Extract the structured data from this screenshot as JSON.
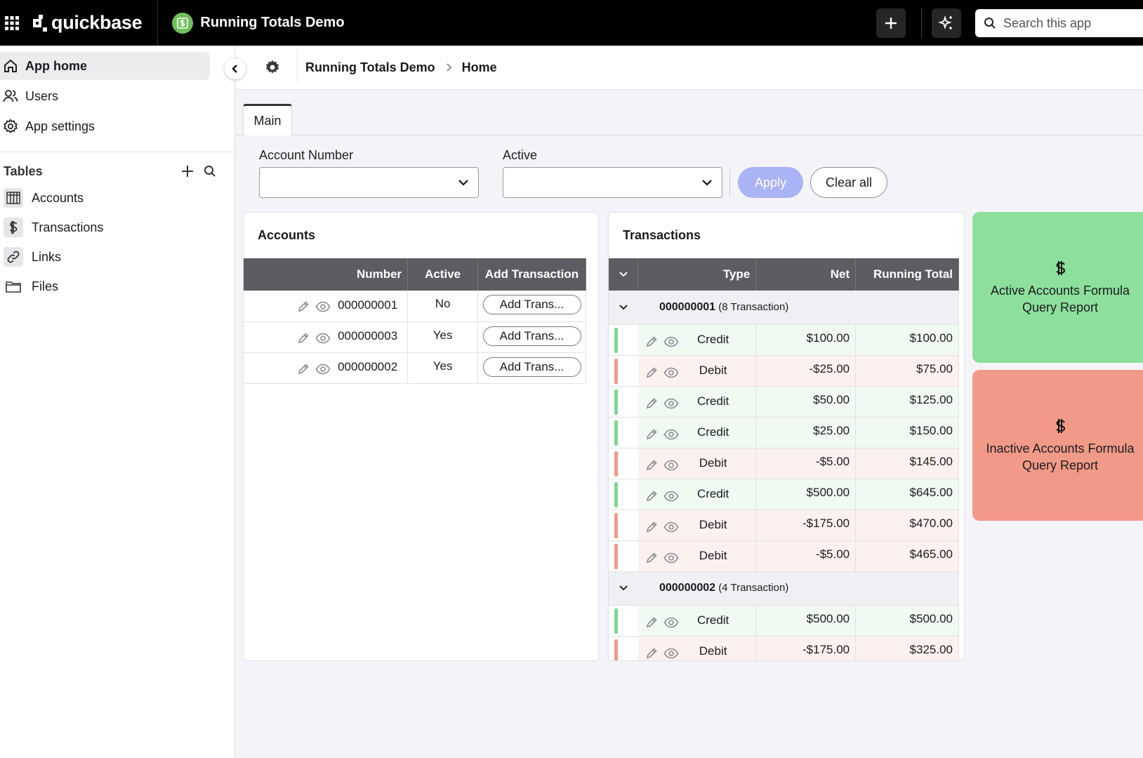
{
  "topbar": {
    "logo_text": "quickbase",
    "app_name": "Running Totals Demo",
    "search_placeholder": "Search this app",
    "icons": [
      "apps-grid-icon",
      "plus-icon",
      "sparkle-icon",
      "search-icon"
    ]
  },
  "sidebar": {
    "nav": [
      {
        "label": "App home",
        "icon": "home-icon"
      },
      {
        "label": "Users",
        "icon": "users-icon"
      },
      {
        "label": "App settings",
        "icon": "gear-icon"
      }
    ],
    "tables_heading": "Tables",
    "tables": [
      {
        "label": "Accounts",
        "icon": "table-icon"
      },
      {
        "label": "Transactions",
        "icon": "dollar-icon"
      },
      {
        "label": "Links",
        "icon": "link-icon"
      },
      {
        "label": "Files",
        "icon": "folder-icon"
      }
    ]
  },
  "header": {
    "breadcrumb_app": "Running Totals Demo",
    "breadcrumb_page": "Home"
  },
  "tabs": {
    "main": "Main"
  },
  "filters": {
    "account_number_label": "Account Number",
    "account_number_value": "",
    "active_label": "Active",
    "active_value": "",
    "apply": "Apply",
    "clear_all": "Clear all"
  },
  "accounts": {
    "title": "Accounts",
    "columns": [
      "Number",
      "Active",
      "Add Transaction"
    ],
    "button_label": "Add Trans...",
    "rows": [
      {
        "number": "000000001",
        "active": "No"
      },
      {
        "number": "000000003",
        "active": "Yes"
      },
      {
        "number": "000000002",
        "active": "Yes"
      }
    ]
  },
  "transactions": {
    "title": "Transactions",
    "columns": [
      "Type",
      "Net",
      "Running Total"
    ],
    "groups": [
      {
        "account": "000000001",
        "count_label": "(8 Transaction)",
        "rows": [
          {
            "type": "Credit",
            "net": "$100.00",
            "total": "$100.00"
          },
          {
            "type": "Debit",
            "net": "-$25.00",
            "total": "$75.00"
          },
          {
            "type": "Credit",
            "net": "$50.00",
            "total": "$125.00"
          },
          {
            "type": "Credit",
            "net": "$25.00",
            "total": "$150.00"
          },
          {
            "type": "Debit",
            "net": "-$5.00",
            "total": "$145.00"
          },
          {
            "type": "Credit",
            "net": "$500.00",
            "total": "$645.00"
          },
          {
            "type": "Debit",
            "net": "-$175.00",
            "total": "$470.00"
          },
          {
            "type": "Debit",
            "net": "-$5.00",
            "total": "$465.00"
          }
        ]
      },
      {
        "account": "000000002",
        "count_label": "(4 Transaction)",
        "rows": [
          {
            "type": "Credit",
            "net": "$500.00",
            "total": "$500.00"
          },
          {
            "type": "Debit",
            "net": "-$175.00",
            "total": "$325.00"
          }
        ]
      }
    ]
  },
  "reports": {
    "active": "Active Accounts Formula Query Report",
    "inactive": "Inactive Accounts Formula Query Report",
    "active_color": "#8ce09c",
    "inactive_color": "#f29a88"
  },
  "colors": {
    "credit_bar": "#7fd693",
    "debit_bar": "#ef9a8a",
    "apply_button": "#a9b3f5",
    "table_header": "#5c5c63"
  }
}
